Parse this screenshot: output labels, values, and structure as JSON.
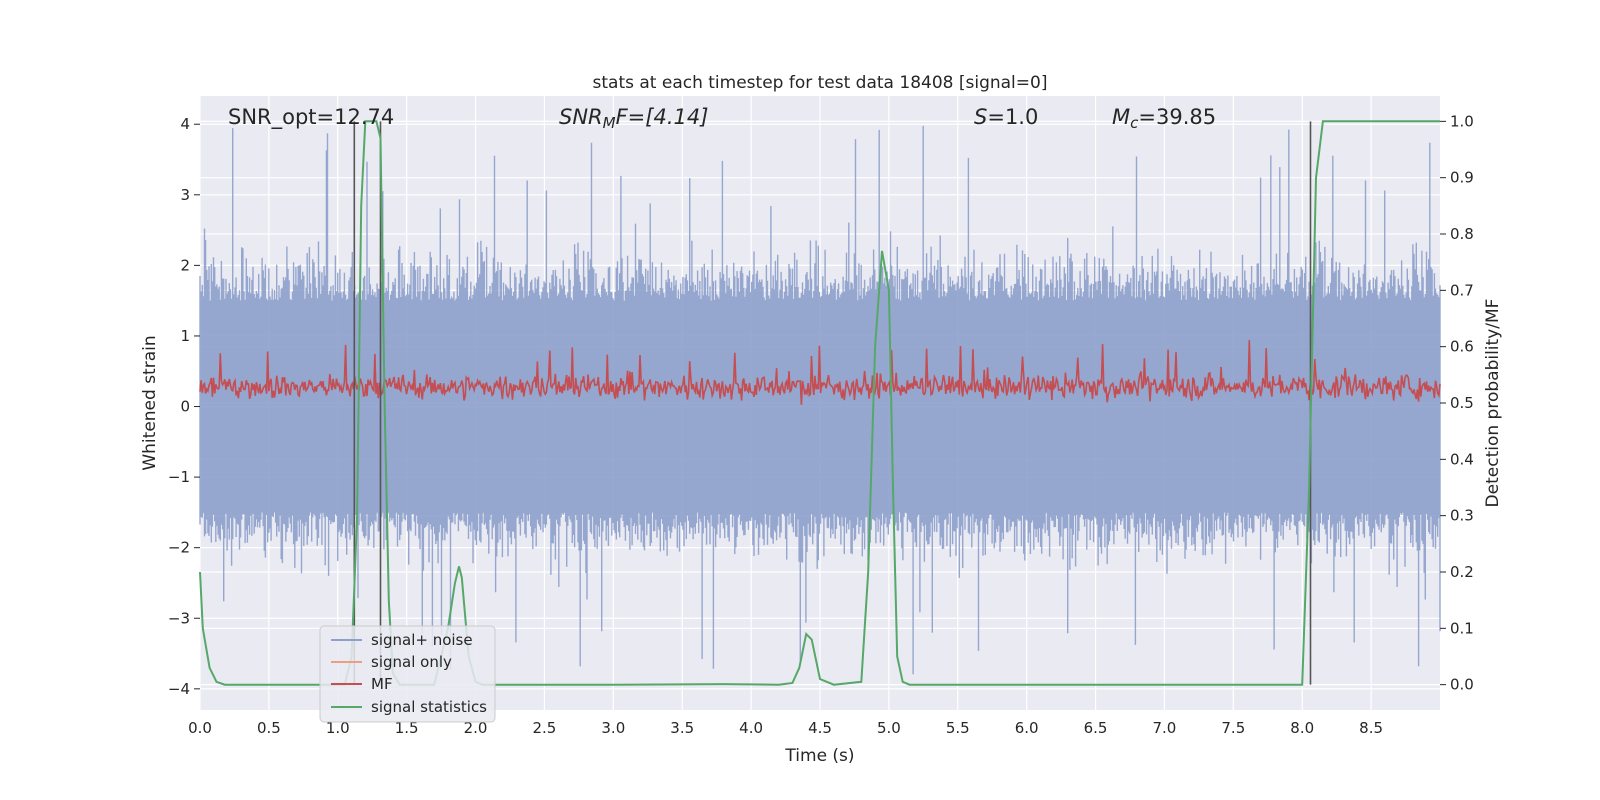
{
  "chart_data": {
    "type": "line",
    "title": "stats at each timestep for test data 18408 [signal=0]",
    "xlabel": "Time (s)",
    "ylabel": "Whitened strain",
    "y2label": "Detection probability/MF",
    "xlim": [
      0.0,
      9.0
    ],
    "ylim": [
      -4.3,
      4.4
    ],
    "y2lim": [
      -0.045,
      1.045
    ],
    "xticks": [
      "0.0",
      "0.5",
      "1.0",
      "1.5",
      "2.0",
      "2.5",
      "3.0",
      "3.5",
      "4.0",
      "4.5",
      "5.0",
      "5.5",
      "6.0",
      "6.5",
      "7.0",
      "7.5",
      "8.0",
      "8.5"
    ],
    "yticks": [
      "4",
      "3",
      "2",
      "1",
      "0",
      "−1",
      "−2",
      "−3",
      "−4"
    ],
    "y2ticks": [
      "1.0",
      "0.9",
      "0.8",
      "0.7",
      "0.6",
      "0.5",
      "0.4",
      "0.3",
      "0.2",
      "0.1",
      "0.0"
    ],
    "grid": true,
    "legend_position": "lower-left",
    "annotations": {
      "snr_opt": "SNR_opt=12.74",
      "snr_mf_sym": "SNR",
      "snr_mf_sub": "M",
      "snr_mf_rest": "F=[4.14]",
      "s_sym": "S",
      "s_rest": "=1.0",
      "mc_sym": "M",
      "mc_sub": "c",
      "mc_rest": "=39.85"
    },
    "series": [
      {
        "name": "signal+ noise",
        "color": "#8da0cb",
        "axis": "left",
        "band": {
          "typical_range": [
            -1.5,
            1.5
          ],
          "peak_range": [
            -3.8,
            4.0
          ],
          "samples": 1100
        }
      },
      {
        "name": "signal only",
        "color": "#e8a080",
        "axis": "left",
        "values": []
      },
      {
        "name": "MF",
        "color": "#c44e52",
        "axis": "left",
        "band": {
          "center": 0.28,
          "typical_amplitude": 0.22,
          "max": 0.95,
          "min": -0.05,
          "samples": 1100
        }
      },
      {
        "name": "signal statistics",
        "color": "#55a868",
        "axis": "right",
        "x": [
          0.0,
          0.02,
          0.07,
          0.12,
          0.18,
          0.3,
          0.6,
          0.9,
          1.0,
          1.05,
          1.1,
          1.14,
          1.17,
          1.2,
          1.24,
          1.28,
          1.31,
          1.34,
          1.37,
          1.4,
          1.45,
          1.5,
          1.6,
          1.7,
          1.8,
          1.85,
          1.88,
          1.9,
          1.95,
          2.0,
          2.05,
          2.2,
          3.0,
          3.8,
          4.2,
          4.3,
          4.35,
          4.4,
          4.44,
          4.5,
          4.6,
          4.8,
          4.85,
          4.9,
          4.95,
          5.0,
          5.03,
          5.06,
          5.1,
          5.15,
          5.2,
          6.0,
          7.0,
          8.0,
          8.05,
          8.1,
          8.15,
          9.0
        ],
        "values": [
          0.2,
          0.1,
          0.03,
          0.005,
          0.0,
          0.0,
          0.0,
          0.0,
          0.0,
          0.0,
          0.05,
          0.3,
          0.85,
          1.0,
          1.0,
          1.0,
          0.97,
          0.5,
          0.15,
          0.02,
          0.0,
          0.0,
          0.0,
          0.0,
          0.1,
          0.18,
          0.21,
          0.19,
          0.05,
          0.005,
          0.0,
          0.0,
          0.0,
          0.001,
          0.0,
          0.003,
          0.03,
          0.09,
          0.08,
          0.01,
          0.0,
          0.005,
          0.2,
          0.6,
          0.77,
          0.7,
          0.35,
          0.05,
          0.005,
          0.0,
          0.0,
          0.0,
          0.0,
          0.0,
          0.35,
          0.9,
          1.0,
          1.0
        ]
      }
    ],
    "vlines": [
      1.12,
      1.31,
      8.06
    ]
  }
}
